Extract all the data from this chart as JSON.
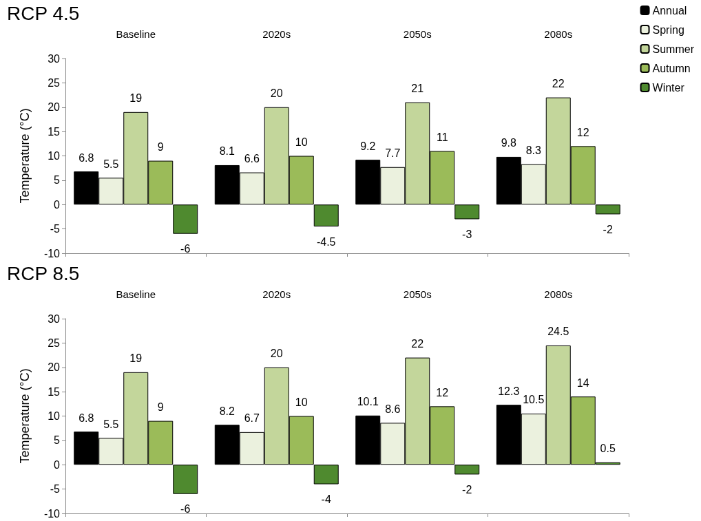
{
  "chart_data": [
    {
      "type": "bar",
      "title": "RCP 4.5",
      "ylabel": "Temperature (°C)",
      "categories": [
        "Baseline",
        "2020s",
        "2050s",
        "2080s"
      ],
      "series": [
        {
          "name": "Annual",
          "color": "#000000",
          "values": [
            6.8,
            8.1,
            9.2,
            9.8
          ]
        },
        {
          "name": "Spring",
          "color": "#ebf1de",
          "values": [
            5.5,
            6.6,
            7.7,
            8.3
          ]
        },
        {
          "name": "Summer",
          "color": "#c3d69b",
          "values": [
            19,
            20,
            21,
            22
          ]
        },
        {
          "name": "Autumn",
          "color": "#9bbb59",
          "values": [
            9,
            10,
            11,
            12
          ]
        },
        {
          "name": "Winter",
          "color": "#4f8a2f",
          "values": [
            -6,
            -4.5,
            -3,
            -2
          ]
        }
      ],
      "ylim": [
        -10,
        30
      ],
      "yticks": [
        -10,
        -5,
        0,
        5,
        10,
        15,
        20,
        25,
        30
      ],
      "grid": false,
      "legend": "top right",
      "data_labels": true
    },
    {
      "type": "bar",
      "title": "RCP 8.5",
      "ylabel": "Temperature (°C)",
      "categories": [
        "Baseline",
        "2020s",
        "2050s",
        "2080s"
      ],
      "series": [
        {
          "color": "#000000",
          "values": [
            6.8,
            8.2,
            10.1,
            12.3
          ]
        },
        {
          "color": "#ebf1de",
          "values": [
            5.5,
            6.7,
            8.6,
            10.5
          ]
        },
        {
          "color": "#c3d69b",
          "values": [
            19,
            20,
            22,
            24.5
          ]
        },
        {
          "color": "#9bbb59",
          "values": [
            9,
            10,
            12,
            14
          ]
        },
        {
          "color": "#4f8a2f",
          "values": [
            -6,
            -4,
            -2,
            0.5
          ]
        }
      ],
      "ylim": [
        -10,
        30
      ],
      "yticks": [
        -10,
        -5,
        0,
        5,
        10,
        15,
        20,
        25,
        30
      ],
      "grid": false,
      "legend": false,
      "data_labels": true
    }
  ]
}
